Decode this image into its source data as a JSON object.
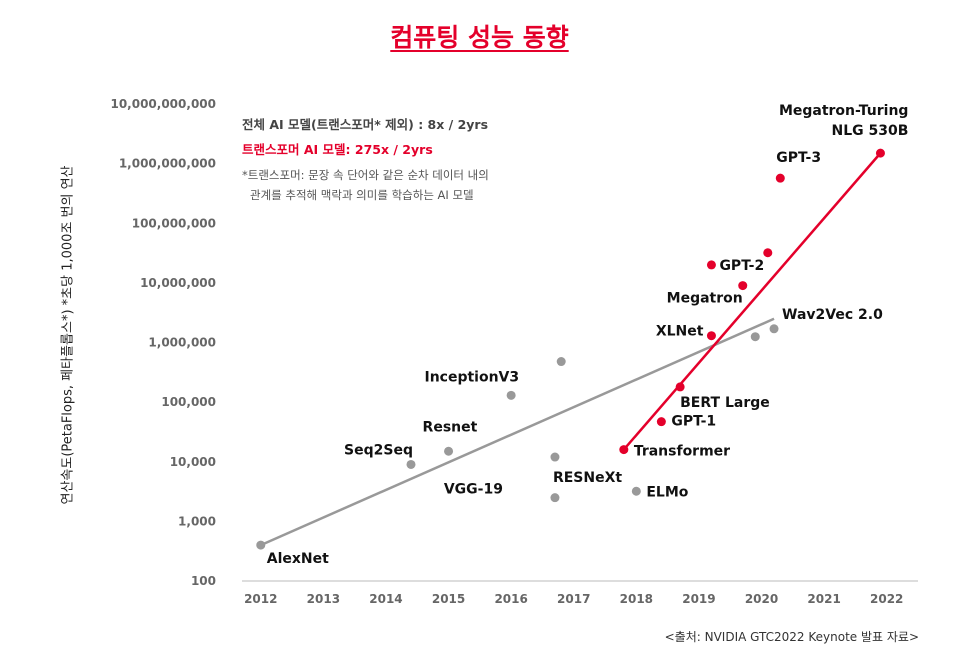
{
  "title": "컴퓨팅 성능 동향",
  "legend": {
    "all_models": "전체 AI 모델(트랜스포머* 제외) : 8x / 2yrs",
    "transformer": "트랜스포머 AI 모델: 275x / 2yrs",
    "note_line1": "*트랜스포머: 문장 속 단어와 같은 순차 데이터 내의",
    "note_line2": "관계를 추적해 맥락과 의미를 학습하는 AI 모델"
  },
  "source": "<출처: NVIDIA GTC2022 Keynote 발표 자료>",
  "colors": {
    "accent": "#e4002b",
    "gray": "#999999"
  },
  "chart_data": {
    "type": "scatter",
    "ylabel": "연산속도(PetaFlops, 페타플롭스*) *초당 1,000조 번의 연산",
    "y_scale": "log",
    "ylim": [
      100,
      10000000000
    ],
    "xlim": [
      2011.7,
      2022.5
    ],
    "x_ticks": [
      "2012",
      "2013",
      "2014",
      "2015",
      "2016",
      "2017",
      "2018",
      "2019",
      "2020",
      "2021",
      "2022"
    ],
    "y_ticks": [
      "100",
      "1,000",
      "10,000",
      "100,000",
      "1,000,000",
      "10,000,000",
      "100,000,000",
      "1,000,000,000",
      "10,000,000,000"
    ],
    "series": [
      {
        "group": "gray",
        "points": [
          {
            "label": "AlexNet",
            "x": 2012.0,
            "y": 400
          },
          {
            "label": "Seq2Seq",
            "x": 2014.4,
            "y": 9000
          },
          {
            "label": "Resnet",
            "x": 2015.0,
            "y": 15000
          },
          {
            "label": "InceptionV3",
            "x": 2016.0,
            "y": 130000
          },
          {
            "label": "",
            "x": 2016.8,
            "y": 480000
          },
          {
            "label": "RESNeXt",
            "x": 2016.7,
            "y": 12000
          },
          {
            "label": "VGG-19",
            "x": 2016.7,
            "y": 2500
          },
          {
            "label": "ELMo",
            "x": 2018.0,
            "y": 3200
          },
          {
            "label": "",
            "x": 2019.9,
            "y": 1250000
          },
          {
            "label": "Wav2Vec 2.0",
            "x": 2020.2,
            "y": 1700000
          }
        ]
      },
      {
        "group": "red",
        "points": [
          {
            "label": "Transformer",
            "x": 2017.8,
            "y": 16000
          },
          {
            "label": "GPT-1",
            "x": 2018.4,
            "y": 47000
          },
          {
            "label": "BERT Large",
            "x": 2018.7,
            "y": 180000
          },
          {
            "label": "XLNet",
            "x": 2019.2,
            "y": 1300000
          },
          {
            "label": "GPT-2",
            "x": 2019.2,
            "y": 20000000
          },
          {
            "label": "Megatron",
            "x": 2019.7,
            "y": 9000000
          },
          {
            "label": "",
            "x": 2020.1,
            "y": 32000000
          },
          {
            "label": "GPT-3",
            "x": 2020.3,
            "y": 570000000
          },
          {
            "label": "Megatron-Turing\nNLG 530B",
            "x": 2021.9,
            "y": 1500000000
          }
        ]
      }
    ],
    "trendlines": [
      {
        "group": "gray",
        "from": [
          2012.0,
          400
        ],
        "to": [
          2020.2,
          2500000
        ]
      },
      {
        "group": "red",
        "from": [
          2017.8,
          16000
        ],
        "to": [
          2021.9,
          1500000000
        ]
      }
    ]
  }
}
